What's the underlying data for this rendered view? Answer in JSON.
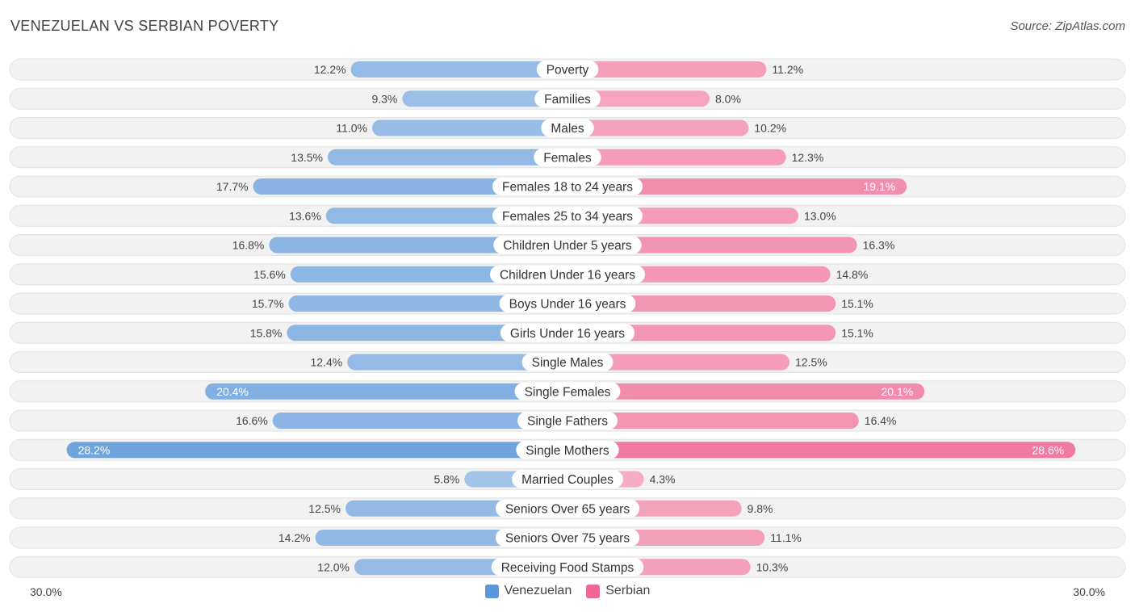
{
  "header": {
    "title": "VENEZUELAN VS SERBIAN POVERTY",
    "source": "Source: ZipAtlas.com"
  },
  "axis": {
    "left_label": "30.0%",
    "right_label": "30.0%"
  },
  "legend": {
    "left": "Venezuelan",
    "right": "Serbian"
  },
  "colors": {
    "left_bar": "#6fa3dc",
    "right_bar": "#f07aa0",
    "left_swatch": "#5b97da",
    "right_swatch": "#f06795",
    "track": "#f1f1f1"
  },
  "chart_data": {
    "type": "bar",
    "orientation": "diverging-horizontal",
    "title": "VENEZUELAN VS SERBIAN POVERTY",
    "xlim": [
      0,
      30
    ],
    "unit": "%",
    "categories": [
      "Poverty",
      "Families",
      "Males",
      "Females",
      "Females 18 to 24 years",
      "Females 25 to 34 years",
      "Children Under 5 years",
      "Children Under 16 years",
      "Boys Under 16 years",
      "Girls Under 16 years",
      "Single Males",
      "Single Females",
      "Single Fathers",
      "Single Mothers",
      "Married Couples",
      "Seniors Over 65 years",
      "Seniors Over 75 years",
      "Receiving Food Stamps"
    ],
    "series": [
      {
        "name": "Venezuelan",
        "values": [
          12.2,
          9.3,
          11.0,
          13.5,
          17.7,
          13.6,
          16.8,
          15.6,
          15.7,
          15.8,
          12.4,
          20.4,
          16.6,
          28.2,
          5.8,
          12.5,
          14.2,
          12.0
        ],
        "labels": [
          "12.2%",
          "9.3%",
          "11.0%",
          "13.5%",
          "17.7%",
          "13.6%",
          "16.8%",
          "15.6%",
          "15.7%",
          "15.8%",
          "12.4%",
          "20.4%",
          "16.6%",
          "28.2%",
          "5.8%",
          "12.5%",
          "14.2%",
          "12.0%"
        ]
      },
      {
        "name": "Serbian",
        "values": [
          11.2,
          8.0,
          10.2,
          12.3,
          19.1,
          13.0,
          16.3,
          14.8,
          15.1,
          15.1,
          12.5,
          20.1,
          16.4,
          28.6,
          4.3,
          9.8,
          11.1,
          10.3
        ],
        "labels": [
          "11.2%",
          "8.0%",
          "10.2%",
          "12.3%",
          "19.1%",
          "13.0%",
          "16.3%",
          "14.8%",
          "15.1%",
          "15.1%",
          "12.5%",
          "20.1%",
          "16.4%",
          "28.6%",
          "4.3%",
          "9.8%",
          "11.1%",
          "10.3%"
        ]
      }
    ]
  }
}
